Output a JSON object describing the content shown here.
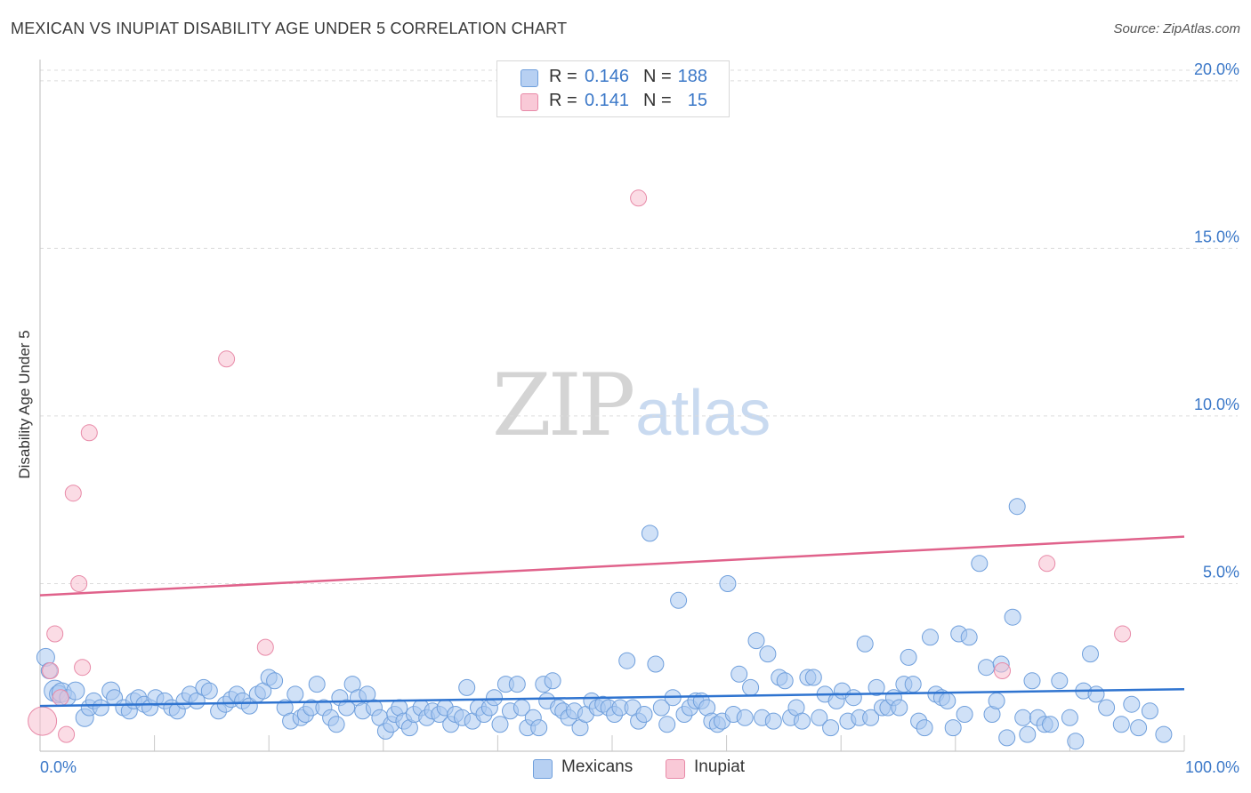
{
  "title": "MEXICAN VS INUPIAT DISABILITY AGE UNDER 5 CORRELATION CHART",
  "source": "Source: ZipAtlas.com",
  "watermark": {
    "zip": "ZIP",
    "atlas": "atlas"
  },
  "colors": {
    "blue_fill": "#a9c8f0",
    "blue_stroke": "#6f9fdc",
    "blue_line": "#2f74d0",
    "pink_fill": "#f7bfd0",
    "pink_stroke": "#e88aa8",
    "pink_line": "#e0628b",
    "grid": "#dcdcdc",
    "axis_text": "#3b78c8"
  },
  "legend": {
    "rows": [
      {
        "r_label": "R =",
        "r_value": "0.146",
        "n_label": "N =",
        "n_value": "188"
      },
      {
        "r_label": "R =",
        "r_value": "0.141",
        "n_label": "N =",
        "n_value": "15"
      }
    ]
  },
  "bottom_legend": {
    "mexicans": "Mexicans",
    "inupiat": "Inupiat"
  },
  "chart_data": {
    "type": "scatter",
    "title": "MEXICAN VS INUPIAT DISABILITY AGE UNDER 5 CORRELATION CHART",
    "xlabel": "",
    "ylabel": "Disability Age Under 5",
    "xlim": [
      0,
      100
    ],
    "ylim": [
      0,
      20.5
    ],
    "x_tick_labels": [
      "0.0%",
      "100.0%"
    ],
    "y_ticks": [
      5,
      10,
      15,
      20
    ],
    "y_tick_labels": [
      "5.0%",
      "10.0%",
      "15.0%",
      "20.0%"
    ],
    "grid": true,
    "legend_position": "top-center",
    "series": [
      {
        "name": "Mexicans",
        "r": 0.146,
        "n": 188,
        "trend": {
          "x": [
            0,
            100
          ],
          "y": [
            1.35,
            1.85
          ]
        },
        "points": [
          [
            0.5,
            2.8,
            10
          ],
          [
            0.8,
            2.4,
            9
          ],
          [
            1.3,
            1.8,
            12
          ],
          [
            1.6,
            1.7,
            10
          ],
          [
            1.9,
            1.75,
            11
          ],
          [
            2.4,
            1.6,
            9
          ],
          [
            3.1,
            1.8,
            10
          ],
          [
            3.9,
            1.0,
            10
          ],
          [
            4.3,
            1.3,
            9
          ],
          [
            4.7,
            1.5,
            9
          ],
          [
            5.3,
            1.3,
            9
          ],
          [
            6.2,
            1.8,
            10
          ],
          [
            6.5,
            1.6,
            9
          ],
          [
            7.3,
            1.3,
            9
          ],
          [
            7.8,
            1.2,
            9
          ],
          [
            8.2,
            1.5,
            9
          ],
          [
            8.6,
            1.6,
            9
          ],
          [
            9.1,
            1.4,
            9
          ],
          [
            9.6,
            1.3,
            9
          ],
          [
            10.1,
            1.6,
            9
          ],
          [
            10.9,
            1.5,
            9
          ],
          [
            11.5,
            1.3,
            9
          ],
          [
            12.0,
            1.2,
            9
          ],
          [
            12.6,
            1.5,
            9
          ],
          [
            13.1,
            1.7,
            9
          ],
          [
            13.7,
            1.5,
            9
          ],
          [
            14.3,
            1.9,
            9
          ],
          [
            14.8,
            1.8,
            9
          ],
          [
            15.6,
            1.2,
            9
          ],
          [
            16.2,
            1.4,
            9
          ],
          [
            16.7,
            1.55,
            9
          ],
          [
            17.2,
            1.7,
            9
          ],
          [
            17.7,
            1.5,
            9
          ],
          [
            18.3,
            1.35,
            9
          ],
          [
            19.0,
            1.7,
            9
          ],
          [
            19.5,
            1.8,
            9
          ],
          [
            20.0,
            2.2,
            9
          ],
          [
            20.5,
            2.1,
            9
          ],
          [
            21.4,
            1.3,
            9
          ],
          [
            21.9,
            0.9,
            9
          ],
          [
            22.3,
            1.7,
            9
          ],
          [
            22.8,
            1.0,
            9
          ],
          [
            23.2,
            1.1,
            9
          ],
          [
            23.7,
            1.3,
            9
          ],
          [
            24.2,
            2.0,
            9
          ],
          [
            24.8,
            1.3,
            9
          ],
          [
            25.4,
            1.0,
            9
          ],
          [
            25.9,
            0.8,
            9
          ],
          [
            26.2,
            1.6,
            9
          ],
          [
            26.8,
            1.3,
            9
          ],
          [
            27.3,
            2.0,
            9
          ],
          [
            27.8,
            1.6,
            9
          ],
          [
            28.2,
            1.2,
            9
          ],
          [
            28.6,
            1.7,
            9
          ],
          [
            29.2,
            1.3,
            9
          ],
          [
            29.7,
            1.0,
            9
          ],
          [
            30.2,
            0.6,
            9
          ],
          [
            30.7,
            0.8,
            9
          ],
          [
            31.0,
            1.1,
            9
          ],
          [
            31.4,
            1.3,
            9
          ],
          [
            31.8,
            0.9,
            9
          ],
          [
            32.3,
            0.7,
            9
          ],
          [
            32.7,
            1.1,
            9
          ],
          [
            33.3,
            1.3,
            9
          ],
          [
            33.8,
            1.0,
            9
          ],
          [
            34.3,
            1.2,
            9
          ],
          [
            34.9,
            1.1,
            9
          ],
          [
            35.4,
            1.3,
            9
          ],
          [
            35.9,
            0.8,
            9
          ],
          [
            36.3,
            1.1,
            9
          ],
          [
            36.9,
            1.0,
            9
          ],
          [
            37.3,
            1.9,
            9
          ],
          [
            37.8,
            0.9,
            9
          ],
          [
            38.3,
            1.3,
            9
          ],
          [
            38.8,
            1.1,
            9
          ],
          [
            39.3,
            1.3,
            9
          ],
          [
            39.7,
            1.6,
            9
          ],
          [
            40.2,
            0.8,
            9
          ],
          [
            40.7,
            2.0,
            9
          ],
          [
            41.1,
            1.2,
            9
          ],
          [
            41.7,
            2.0,
            9
          ],
          [
            42.1,
            1.3,
            9
          ],
          [
            42.6,
            0.7,
            9
          ],
          [
            43.1,
            1.0,
            9
          ],
          [
            43.6,
            0.7,
            9
          ],
          [
            44.0,
            2.0,
            9
          ],
          [
            44.3,
            1.5,
            9
          ],
          [
            44.8,
            2.1,
            9
          ],
          [
            45.3,
            1.3,
            9
          ],
          [
            45.7,
            1.2,
            9
          ],
          [
            46.2,
            1.0,
            9
          ],
          [
            46.7,
            1.2,
            9
          ],
          [
            47.2,
            0.7,
            9
          ],
          [
            47.7,
            1.1,
            9
          ],
          [
            48.2,
            1.5,
            9
          ],
          [
            48.7,
            1.3,
            9
          ],
          [
            49.2,
            1.4,
            9
          ],
          [
            49.7,
            1.3,
            9
          ],
          [
            50.2,
            1.1,
            9
          ],
          [
            50.7,
            1.3,
            9
          ],
          [
            51.3,
            2.7,
            9
          ],
          [
            51.8,
            1.3,
            9
          ],
          [
            52.3,
            0.9,
            9
          ],
          [
            52.8,
            1.1,
            9
          ],
          [
            53.3,
            6.5,
            9
          ],
          [
            53.8,
            2.6,
            9
          ],
          [
            54.3,
            1.3,
            9
          ],
          [
            54.8,
            0.8,
            9
          ],
          [
            55.3,
            1.6,
            9
          ],
          [
            55.8,
            4.5,
            9
          ],
          [
            56.3,
            1.1,
            9
          ],
          [
            56.8,
            1.3,
            9
          ],
          [
            57.3,
            1.5,
            9
          ],
          [
            57.8,
            1.5,
            9
          ],
          [
            58.3,
            1.3,
            9
          ],
          [
            58.7,
            0.9,
            9
          ],
          [
            59.2,
            0.8,
            9
          ],
          [
            59.6,
            0.9,
            9
          ],
          [
            60.1,
            5.0,
            9
          ],
          [
            60.6,
            1.1,
            9
          ],
          [
            61.1,
            2.3,
            9
          ],
          [
            61.6,
            1.0,
            9
          ],
          [
            62.1,
            1.9,
            9
          ],
          [
            62.6,
            3.3,
            9
          ],
          [
            63.1,
            1.0,
            9
          ],
          [
            63.6,
            2.9,
            9
          ],
          [
            64.1,
            0.9,
            9
          ],
          [
            64.6,
            2.2,
            9
          ],
          [
            65.1,
            2.1,
            9
          ],
          [
            65.6,
            1.0,
            9
          ],
          [
            66.1,
            1.3,
            9
          ],
          [
            66.6,
            0.9,
            9
          ],
          [
            67.1,
            2.2,
            9
          ],
          [
            67.6,
            2.2,
            9
          ],
          [
            68.1,
            1.0,
            9
          ],
          [
            68.6,
            1.7,
            9
          ],
          [
            69.1,
            0.7,
            9
          ],
          [
            69.6,
            1.5,
            9
          ],
          [
            70.1,
            1.8,
            9
          ],
          [
            70.6,
            0.9,
            9
          ],
          [
            71.1,
            1.6,
            9
          ],
          [
            71.6,
            1.0,
            9
          ],
          [
            72.1,
            3.2,
            9
          ],
          [
            72.6,
            1.0,
            9
          ],
          [
            73.1,
            1.9,
            9
          ],
          [
            73.6,
            1.3,
            9
          ],
          [
            74.1,
            1.3,
            9
          ],
          [
            74.6,
            1.6,
            9
          ],
          [
            75.1,
            1.3,
            9
          ],
          [
            75.5,
            2.0,
            9
          ],
          [
            75.9,
            2.8,
            9
          ],
          [
            76.3,
            2.0,
            9
          ],
          [
            76.8,
            0.9,
            9
          ],
          [
            77.3,
            0.7,
            9
          ],
          [
            77.8,
            3.4,
            9
          ],
          [
            78.3,
            1.7,
            9
          ],
          [
            78.8,
            1.6,
            9
          ],
          [
            79.3,
            1.5,
            9
          ],
          [
            79.8,
            0.7,
            9
          ],
          [
            80.3,
            3.5,
            9
          ],
          [
            80.8,
            1.1,
            9
          ],
          [
            81.2,
            3.4,
            9
          ],
          [
            82.1,
            5.6,
            9
          ],
          [
            82.7,
            2.5,
            9
          ],
          [
            83.2,
            1.1,
            9
          ],
          [
            83.6,
            1.5,
            9
          ],
          [
            84.0,
            2.6,
            9
          ],
          [
            84.5,
            0.4,
            9
          ],
          [
            85.0,
            4.0,
            9
          ],
          [
            85.4,
            7.3,
            9
          ],
          [
            85.9,
            1.0,
            9
          ],
          [
            86.3,
            0.5,
            9
          ],
          [
            86.7,
            2.1,
            9
          ],
          [
            87.2,
            1.0,
            9
          ],
          [
            87.8,
            0.8,
            9
          ],
          [
            88.3,
            0.8,
            9
          ],
          [
            89.1,
            2.1,
            9
          ],
          [
            90.0,
            1.0,
            9
          ],
          [
            90.5,
            0.3,
            9
          ],
          [
            91.2,
            1.8,
            9
          ],
          [
            91.8,
            2.9,
            9
          ],
          [
            92.3,
            1.7,
            9
          ],
          [
            93.2,
            1.3,
            9
          ],
          [
            94.5,
            0.8,
            9
          ],
          [
            95.4,
            1.4,
            9
          ],
          [
            96.0,
            0.7,
            9
          ],
          [
            97.0,
            1.2,
            9
          ],
          [
            98.2,
            0.5,
            9
          ]
        ]
      },
      {
        "name": "Inupiat",
        "r": 0.141,
        "n": 15,
        "trend": {
          "x": [
            0,
            100
          ],
          "y": [
            4.65,
            6.4
          ]
        },
        "points": [
          [
            0.2,
            0.9,
            16
          ],
          [
            0.9,
            2.4,
            9
          ],
          [
            1.3,
            3.5,
            9
          ],
          [
            1.8,
            1.6,
            9
          ],
          [
            2.3,
            0.5,
            9
          ],
          [
            2.9,
            7.7,
            9
          ],
          [
            3.4,
            5.0,
            9
          ],
          [
            3.7,
            2.5,
            9
          ],
          [
            4.3,
            9.5,
            9
          ],
          [
            16.3,
            11.7,
            9
          ],
          [
            19.7,
            3.1,
            9
          ],
          [
            52.3,
            16.5,
            9
          ],
          [
            84.1,
            2.4,
            9
          ],
          [
            88.0,
            5.6,
            9
          ],
          [
            94.6,
            3.5,
            9
          ]
        ]
      }
    ]
  }
}
